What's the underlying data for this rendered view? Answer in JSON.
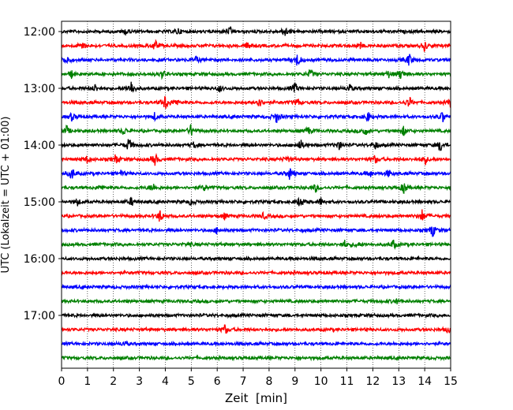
{
  "chart_data": {
    "type": "line",
    "title": "",
    "xlabel": "Zeit  [min]",
    "ylabel": "UTC (Lokalzeit = UTC + 01:00)",
    "xlim": [
      0,
      15
    ],
    "x_ticks": [
      0,
      1,
      2,
      3,
      4,
      5,
      6,
      7,
      8,
      9,
      10,
      11,
      12,
      13,
      14,
      15
    ],
    "grid_x": true,
    "y_tick_labels": [
      "12:00",
      "13:00",
      "14:00",
      "15:00",
      "16:00",
      "17:00"
    ],
    "trace_colors": [
      "#000000",
      "#ff0000",
      "#0000ff",
      "#008000"
    ],
    "series": [
      {
        "start": "12:00",
        "events": [
          [
            2.5,
            0.5
          ],
          [
            4.5,
            0.4
          ],
          [
            6.5,
            0.5
          ],
          [
            8.6,
            0.7
          ]
        ]
      },
      {
        "start": "12:15",
        "events": [
          [
            0.8,
            0.6
          ],
          [
            3.6,
            0.7
          ],
          [
            7.2,
            0.5
          ],
          [
            11.5,
            0.4
          ],
          [
            14.0,
            0.6
          ]
        ]
      },
      {
        "start": "12:30",
        "events": [
          [
            0.2,
            0.7
          ],
          [
            5.2,
            0.4
          ],
          [
            9.1,
            0.9
          ],
          [
            13.4,
            0.8
          ]
        ]
      },
      {
        "start": "12:45",
        "events": [
          [
            0.4,
            0.5
          ],
          [
            3.9,
            0.5
          ],
          [
            9.6,
            0.6
          ],
          [
            12.6,
            0.4
          ],
          [
            13.1,
            0.8
          ]
        ]
      },
      {
        "start": "13:00",
        "events": [
          [
            1.3,
            0.5
          ],
          [
            2.7,
            1.0
          ],
          [
            6.1,
            0.4
          ],
          [
            9.0,
            0.6
          ],
          [
            11.1,
            0.5
          ]
        ]
      },
      {
        "start": "13:15",
        "events": [
          [
            4.0,
            1.0
          ],
          [
            4.4,
            0.5
          ],
          [
            7.6,
            0.8
          ],
          [
            9.1,
            0.5
          ],
          [
            13.4,
            0.7
          ],
          [
            15.0,
            0.6
          ]
        ]
      },
      {
        "start": "13:30",
        "events": [
          [
            0.4,
            0.5
          ],
          [
            3.6,
            0.5
          ],
          [
            8.3,
            0.8
          ],
          [
            11.8,
            0.6
          ],
          [
            14.7,
            0.7
          ]
        ]
      },
      {
        "start": "13:45",
        "events": [
          [
            0.2,
            0.6
          ],
          [
            2.4,
            0.5
          ],
          [
            5.0,
            0.8
          ],
          [
            9.5,
            0.5
          ],
          [
            11.7,
            0.6
          ],
          [
            13.2,
            0.6
          ]
        ]
      },
      {
        "start": "14:00",
        "events": [
          [
            2.6,
            0.9
          ],
          [
            5.1,
            0.4
          ],
          [
            9.2,
            0.7
          ],
          [
            10.7,
            0.5
          ],
          [
            12.1,
            0.5
          ],
          [
            14.6,
            0.8
          ]
        ]
      },
      {
        "start": "14:15",
        "events": [
          [
            1.0,
            0.5
          ],
          [
            2.1,
            0.6
          ],
          [
            3.6,
            0.8
          ],
          [
            8.7,
            0.4
          ],
          [
            12.1,
            0.5
          ],
          [
            14.0,
            0.7
          ]
        ]
      },
      {
        "start": "14:30",
        "events": [
          [
            0.4,
            0.8
          ],
          [
            2.3,
            0.4
          ],
          [
            8.8,
            0.8
          ],
          [
            11.9,
            0.4
          ],
          [
            12.6,
            0.5
          ]
        ]
      },
      {
        "start": "14:45",
        "events": [
          [
            1.5,
            0.4
          ],
          [
            3.5,
            0.6
          ],
          [
            5.5,
            0.4
          ],
          [
            9.8,
            0.5
          ],
          [
            13.2,
            0.8
          ]
        ]
      },
      {
        "start": "15:00",
        "events": [
          [
            0.6,
            0.5
          ],
          [
            2.7,
            0.5
          ],
          [
            5.0,
            0.4
          ],
          [
            9.2,
            0.8
          ],
          [
            10.0,
            0.5
          ]
        ]
      },
      {
        "start": "15:15",
        "events": [
          [
            3.8,
            0.8
          ],
          [
            6.3,
            0.4
          ],
          [
            7.8,
            0.4
          ],
          [
            13.9,
            0.8
          ]
        ]
      },
      {
        "start": "15:30",
        "events": [
          [
            6.0,
            0.4
          ],
          [
            14.3,
            0.9
          ]
        ]
      },
      {
        "start": "15:45",
        "events": [
          [
            4.9,
            0.3
          ],
          [
            10.9,
            0.5
          ],
          [
            11.4,
            0.4
          ],
          [
            12.8,
            0.6
          ]
        ]
      },
      {
        "start": "16:00",
        "events": []
      },
      {
        "start": "16:15",
        "events": []
      },
      {
        "start": "16:30",
        "events": []
      },
      {
        "start": "16:45",
        "events": [
          [
            12.9,
            0.3
          ]
        ]
      },
      {
        "start": "17:00",
        "events": []
      },
      {
        "start": "17:15",
        "events": [
          [
            6.3,
            0.6
          ],
          [
            14.9,
            0.4
          ]
        ]
      },
      {
        "start": "17:30",
        "events": [
          [
            2.4,
            0.3
          ]
        ]
      },
      {
        "start": "17:45",
        "events": []
      }
    ]
  }
}
